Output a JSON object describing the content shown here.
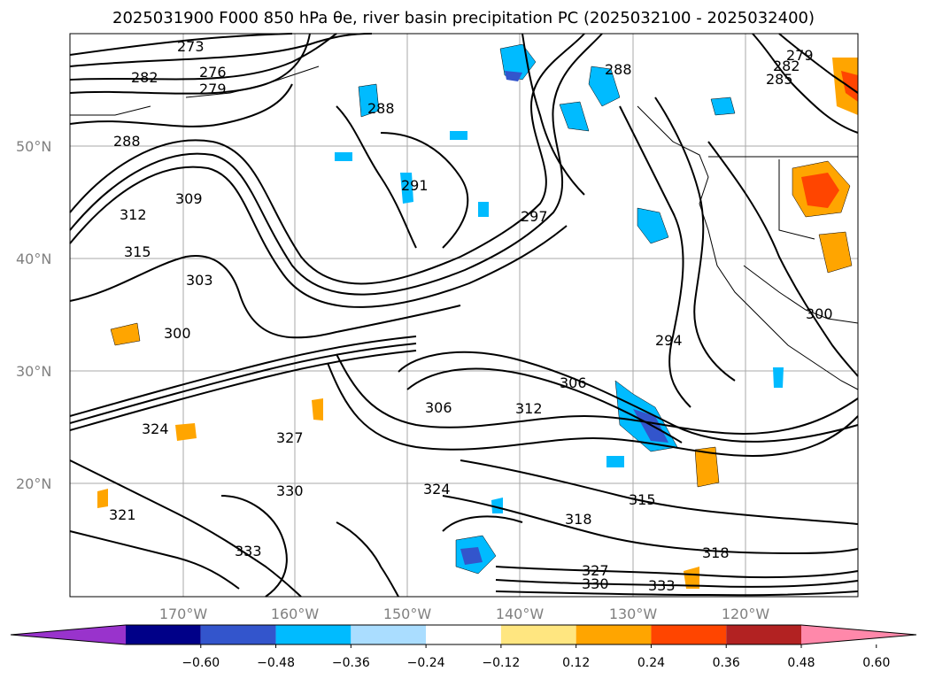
{
  "title": "2025031900 F000 850 hPa θe, river basin precipitation PC (2025032100 - 2025032400)",
  "lat_ticks": [
    "50°N",
    "40°N",
    "30°N",
    "20°N"
  ],
  "lon_ticks": [
    "170°W",
    "160°W",
    "150°W",
    "140°W",
    "130°W",
    "120°W"
  ],
  "contour_labels": [
    "273",
    "276",
    "279",
    "282",
    "288",
    "288",
    "291",
    "297",
    "294",
    "300",
    "303",
    "306",
    "309",
    "312",
    "315",
    "318",
    "321",
    "324",
    "327",
    "330",
    "333",
    "300",
    "306",
    "312",
    "315",
    "318",
    "324",
    "327",
    "330",
    "333",
    "279",
    "282",
    "285",
    "288"
  ],
  "colorbar": {
    "tick_labels": [
      "−0.60",
      "−0.48",
      "−0.36",
      "−0.24",
      "−0.12",
      "0.12",
      "0.24",
      "0.36",
      "0.48",
      "0.60"
    ],
    "colors": [
      "#9933cc",
      "#000088",
      "#3355cc",
      "#00bbff",
      "#aaddff",
      "#ffffff",
      "#ffe680",
      "#ffa500",
      "#ff4500",
      "#b22222",
      "#ff88aa"
    ]
  }
}
